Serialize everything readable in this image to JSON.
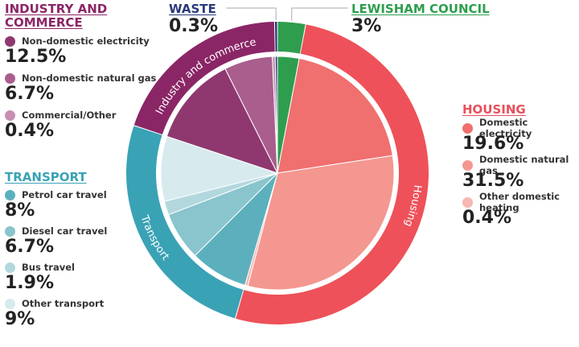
{
  "chart_data": {
    "type": "pie",
    "sectors": [
      {
        "name": "LEWISHAM COUNCIL",
        "ring_label": "",
        "color": "#2e9e4e",
        "title_color": "#2e9e4e",
        "value_label": "3%",
        "slices": [
          {
            "name": "Lewisham Council",
            "value": 3,
            "color": "#2e9e4e"
          }
        ]
      },
      {
        "name": "HOUSING",
        "ring_label": "Housing",
        "color": "#ee5159",
        "title_color": "#e8505b",
        "slices": [
          {
            "name": "Domestic electricity",
            "value": 19.6,
            "value_label": "19.6%",
            "color": "#f06f6f"
          },
          {
            "name": "Domestic natural gas",
            "value": 31.5,
            "value_label": "31.5%",
            "color": "#f49790"
          },
          {
            "name": "Other domestic heating",
            "value": 0.4,
            "value_label": "0.4%",
            "color": "#f7b6b0"
          }
        ]
      },
      {
        "name": "TRANSPORT",
        "ring_label": "Transport",
        "color": "#3aa2b5",
        "title_color": "#3aa2b5",
        "slices": [
          {
            "name": "Petrol car travel",
            "value": 8,
            "value_label": "8%",
            "color": "#5cb0bd"
          },
          {
            "name": "Diesel car travel",
            "value": 6.7,
            "value_label": "6.7%",
            "color": "#8ac4cc"
          },
          {
            "name": "Bus travel",
            "value": 1.9,
            "value_label": "1.9%",
            "color": "#b2d8de"
          },
          {
            "name": "Other transport",
            "value": 9,
            "value_label": "9%",
            "color": "#d7eaee"
          }
        ]
      },
      {
        "name": "INDUSTRY AND COMMERCE",
        "ring_label": "Industry and commerce",
        "color": "#8b2666",
        "title_color": "#8b2666",
        "slices": [
          {
            "name": "Non-domestic electricity",
            "value": 12.5,
            "value_label": "12.5%",
            "color": "#8f3870"
          },
          {
            "name": "Non-domestic natural gas",
            "value": 6.7,
            "value_label": "6.7%",
            "color": "#a95e8e"
          },
          {
            "name": "Commercial/Other",
            "value": 0.4,
            "value_label": "0.4%",
            "color": "#c78fb2"
          }
        ]
      },
      {
        "name": "WASTE",
        "ring_label": "",
        "color": "#22306b",
        "title_color": "#2a3a7a",
        "value_label": "0.3%",
        "slices": [
          {
            "name": "Waste",
            "value": 0.3,
            "color": "#2a3a7a"
          }
        ]
      }
    ]
  }
}
